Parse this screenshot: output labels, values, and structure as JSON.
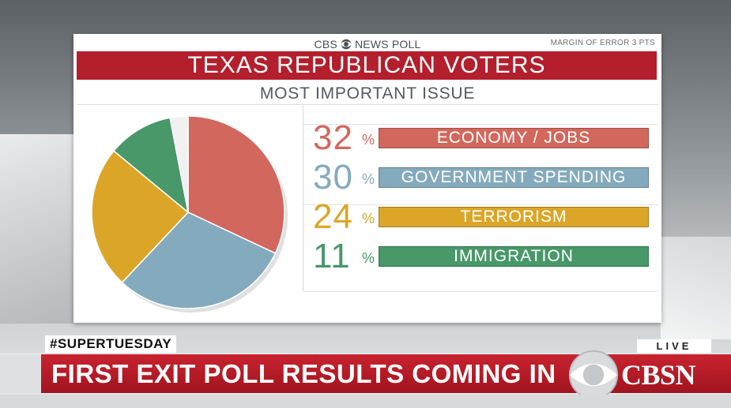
{
  "poll": {
    "brand_network": "CBS",
    "brand_label": "NEWS POLL",
    "margin_note": "MARGIN OF ERROR 3 PTS",
    "title": "TEXAS REPUBLICAN VOTERS",
    "subtitle": "MOST IMPORTANT ISSUE"
  },
  "chart_data": {
    "type": "pie",
    "title": "TEXAS REPUBLICAN VOTERS",
    "subtitle": "MOST IMPORTANT ISSUE",
    "categories": [
      "ECONOMY / JOBS",
      "GOVERNMENT SPENDING",
      "TERRORISM",
      "IMMIGRATION"
    ],
    "values": [
      32,
      30,
      24,
      11
    ],
    "value_labels": [
      "32",
      "30",
      "24",
      "11"
    ],
    "percent_symbol": "%",
    "unit": "%",
    "remainder_color": "#f1f1f1",
    "colors": [
      "#d2685d",
      "#84aabd",
      "#dba628",
      "#48986a"
    ]
  },
  "lower_third": {
    "hashtag": "#SUPERTUESDAY",
    "live_label": "LIVE",
    "headline": "FIRST EXIT POLL RESULTS COMING IN",
    "network_name": "CBSN"
  }
}
